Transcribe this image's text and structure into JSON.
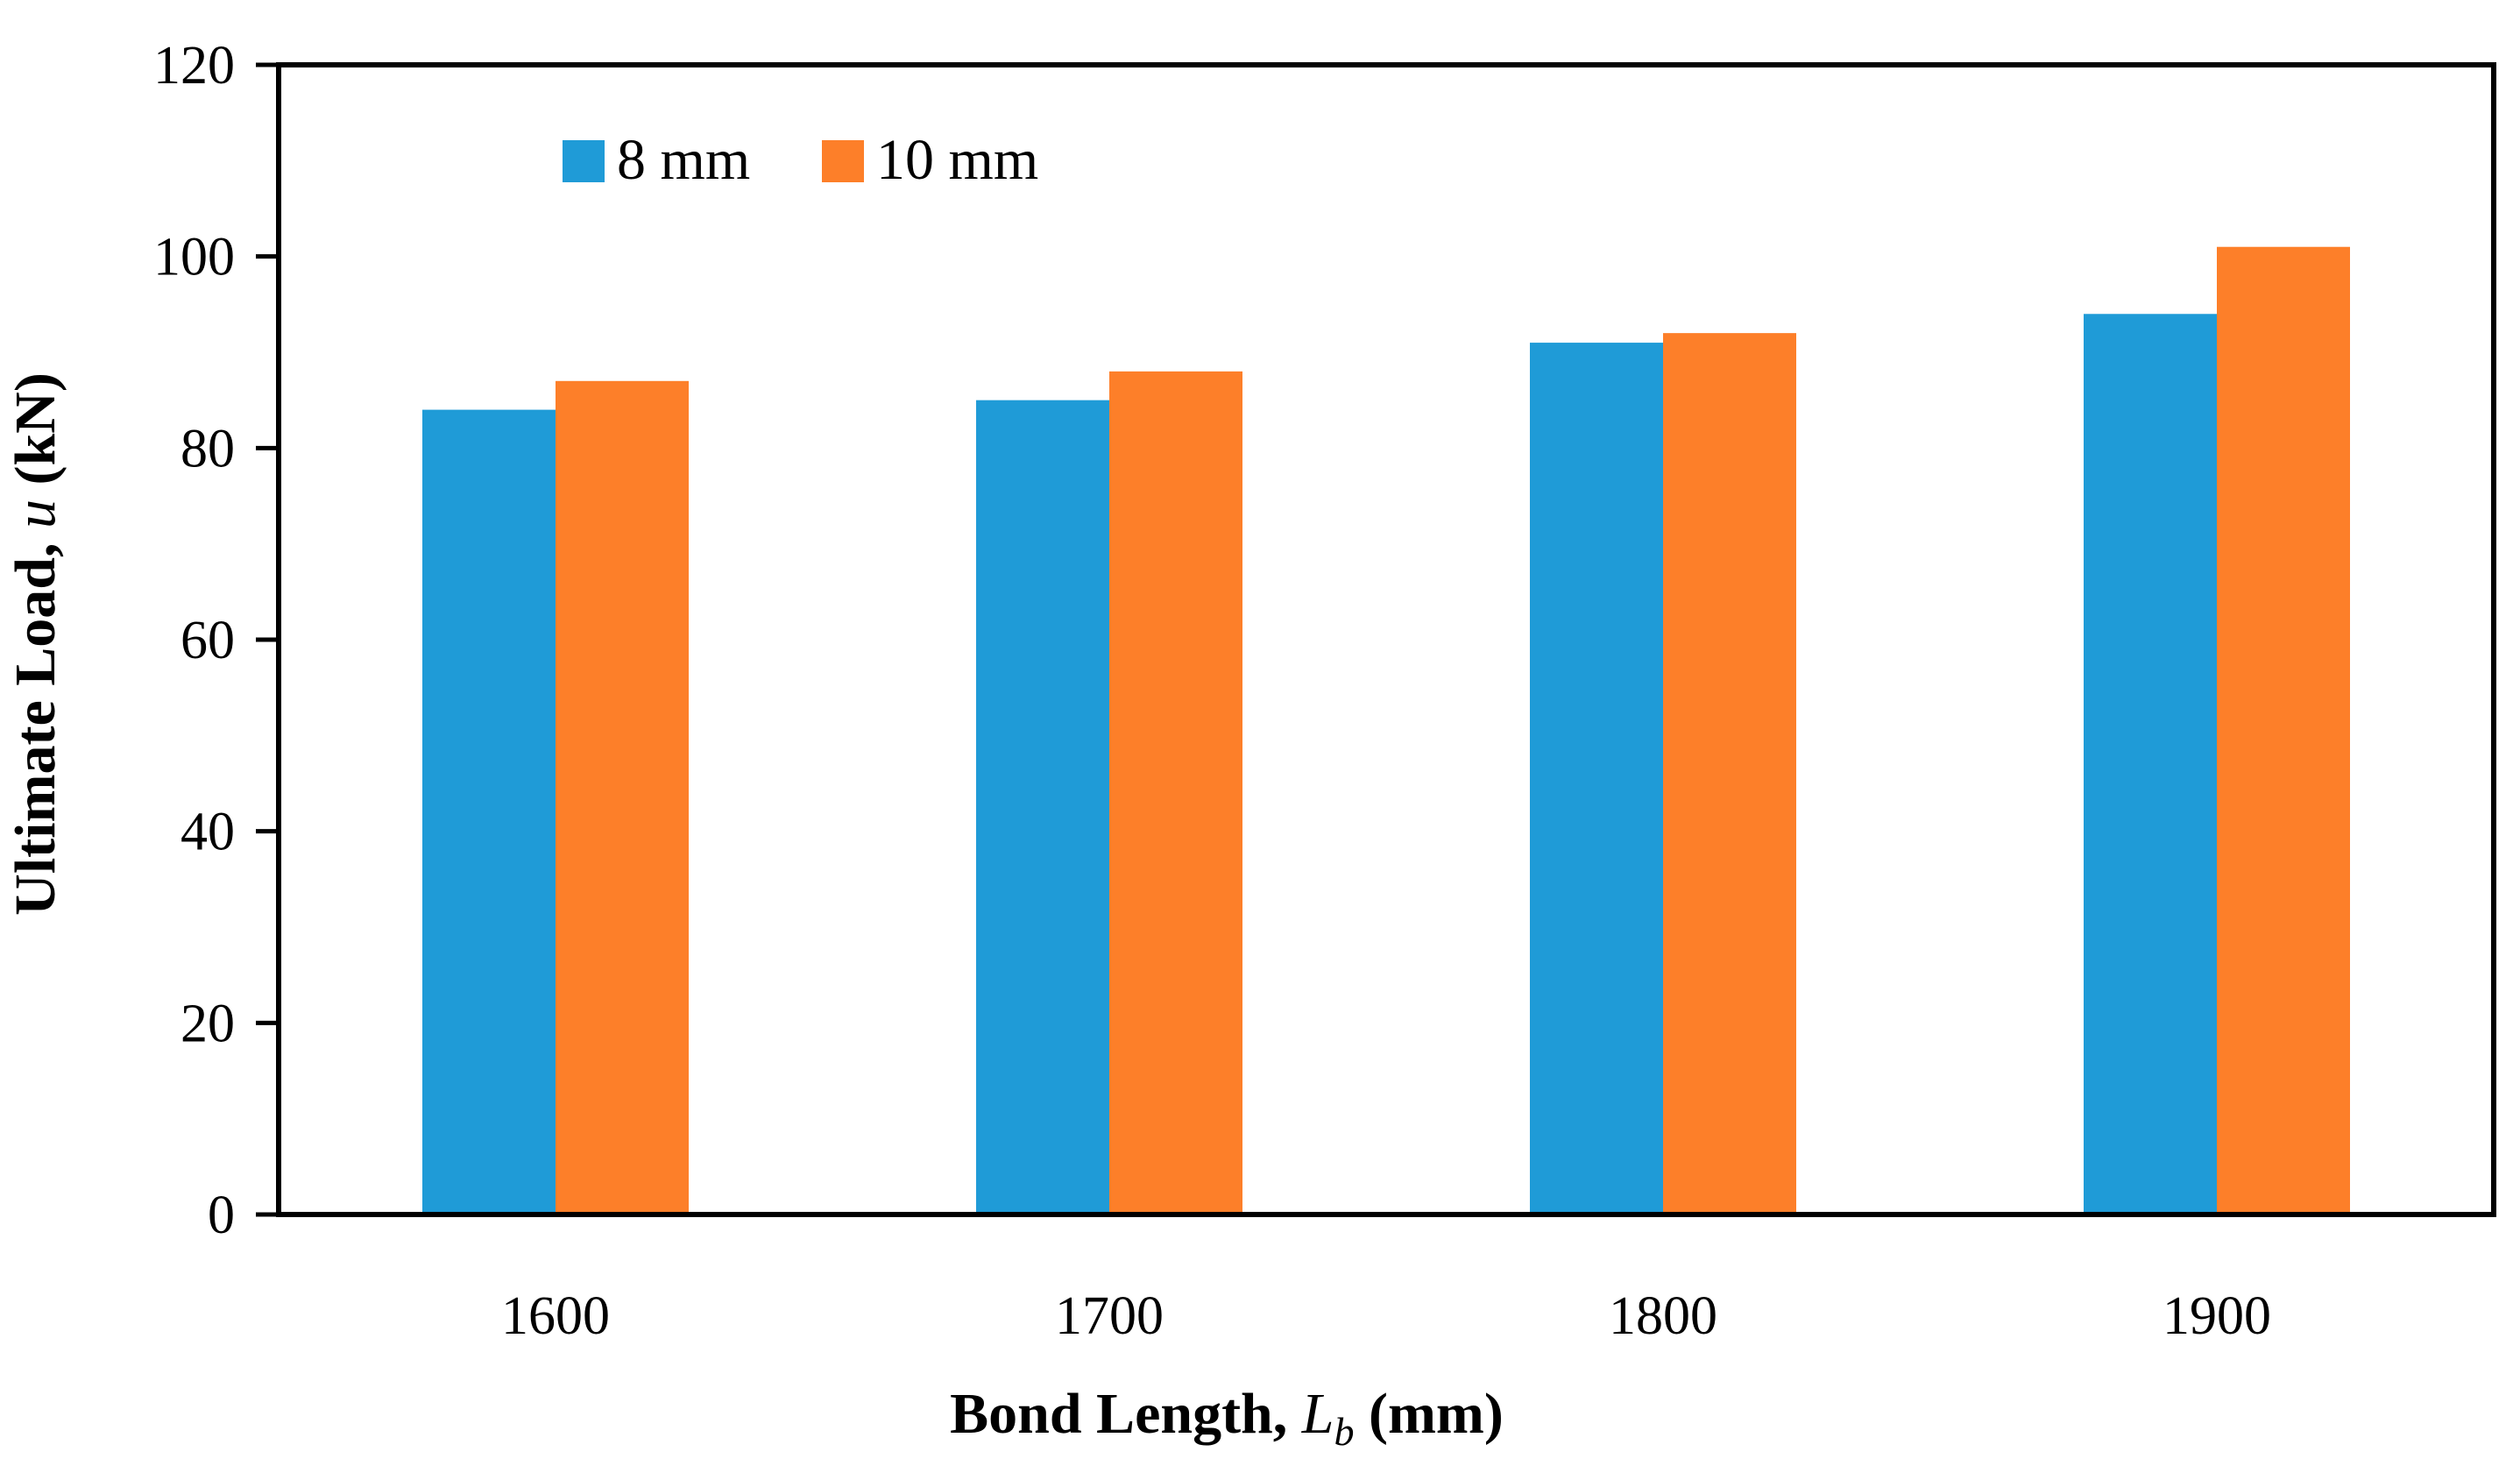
{
  "chart_data": {
    "type": "bar",
    "title": "",
    "categories": [
      "1600",
      "1700",
      "1800",
      "1900"
    ],
    "series": [
      {
        "name": "8 mm",
        "color": "#1F9BD7",
        "values": [
          84,
          85,
          91,
          94
        ]
      },
      {
        "name": "10 mm",
        "color": "#FD7F29",
        "values": [
          87,
          88,
          92,
          101
        ]
      }
    ],
    "xlabel": {
      "prefix": "Bond Length, ",
      "var": "L",
      "sub": "b",
      "suffix": " (mm)"
    },
    "ylabel": {
      "prefix": "Ultimate Load, ",
      "var": "u",
      "suffix": " (kN)"
    },
    "ylim": [
      0,
      120
    ],
    "yticks": [
      "0",
      "20",
      "40",
      "60",
      "80",
      "100",
      "120"
    ],
    "grid": false,
    "legend_position": "top-left"
  }
}
